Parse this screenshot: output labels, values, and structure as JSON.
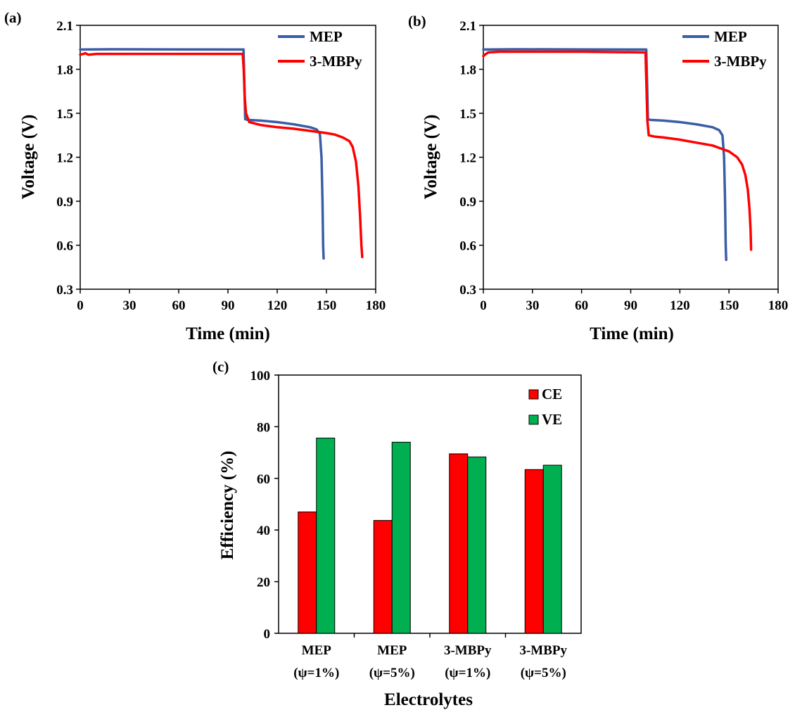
{
  "chart_data": [
    {
      "panel_label": "(a)",
      "type": "line",
      "xlabel": "Time (min)",
      "ylabel": "Voltage (V)",
      "xlim": [
        0,
        180
      ],
      "ylim": [
        0.3,
        2.1
      ],
      "xticks": [
        "0",
        "30",
        "60",
        "90",
        "120",
        "150",
        "180"
      ],
      "yticks": [
        "0.3",
        "0.6",
        "0.9",
        "1.2",
        "1.5",
        "1.8",
        "2.1"
      ],
      "grid": false,
      "legend_position": "top-right",
      "series": [
        {
          "name": "MEP",
          "color": "#3a5ea5",
          "points": [
            [
              0,
              1.935
            ],
            [
              20,
              1.937
            ],
            [
              60,
              1.936
            ],
            [
              99.5,
              1.935
            ],
            [
              100,
              1.7
            ],
            [
              100.5,
              1.46
            ],
            [
              102,
              1.455
            ],
            [
              110,
              1.45
            ],
            [
              120,
              1.44
            ],
            [
              130,
              1.425
            ],
            [
              140,
              1.405
            ],
            [
              144,
              1.39
            ],
            [
              146,
              1.36
            ],
            [
              147,
              1.2
            ],
            [
              147.6,
              0.9
            ],
            [
              148,
              0.6
            ],
            [
              148.3,
              0.51
            ]
          ]
        },
        {
          "name": "3-MBPy",
          "color": "#ff0000",
          "points": [
            [
              0,
              1.9
            ],
            [
              2,
              1.905
            ],
            [
              3,
              1.91
            ],
            [
              5,
              1.9
            ],
            [
              10,
              1.905
            ],
            [
              30,
              1.905
            ],
            [
              60,
              1.905
            ],
            [
              99,
              1.905
            ],
            [
              99.6,
              1.8
            ],
            [
              100.3,
              1.6
            ],
            [
              101,
              1.5
            ],
            [
              103,
              1.44
            ],
            [
              110,
              1.42
            ],
            [
              120,
              1.405
            ],
            [
              130,
              1.395
            ],
            [
              140,
              1.38
            ],
            [
              150,
              1.365
            ],
            [
              155,
              1.355
            ],
            [
              160,
              1.335
            ],
            [
              164,
              1.31
            ],
            [
              166,
              1.27
            ],
            [
              168,
              1.17
            ],
            [
              169.5,
              1.0
            ],
            [
              170.5,
              0.8
            ],
            [
              171.3,
              0.6
            ],
            [
              171.8,
              0.52
            ]
          ]
        }
      ]
    },
    {
      "panel_label": "(b)",
      "type": "line",
      "xlabel": "Time (min)",
      "ylabel": "Voltage (V)",
      "xlim": [
        0,
        180
      ],
      "ylim": [
        0.3,
        2.1
      ],
      "xticks": [
        "0",
        "30",
        "60",
        "90",
        "120",
        "150",
        "180"
      ],
      "yticks": [
        "0.3",
        "0.6",
        "0.9",
        "1.2",
        "1.5",
        "1.8",
        "2.1"
      ],
      "grid": false,
      "legend_position": "top-right",
      "series": [
        {
          "name": "MEP",
          "color": "#3a5ea5",
          "points": [
            [
              0,
              1.935
            ],
            [
              20,
              1.937
            ],
            [
              60,
              1.936
            ],
            [
              99.5,
              1.935
            ],
            [
              100,
              1.7
            ],
            [
              100.5,
              1.46
            ],
            [
              102,
              1.455
            ],
            [
              110,
              1.45
            ],
            [
              120,
              1.44
            ],
            [
              130,
              1.425
            ],
            [
              140,
              1.405
            ],
            [
              144,
              1.385
            ],
            [
              146,
              1.35
            ],
            [
              147,
              1.2
            ],
            [
              147.6,
              0.9
            ],
            [
              148,
              0.6
            ],
            [
              148.3,
              0.5
            ]
          ]
        },
        {
          "name": "3-MBPy",
          "color": "#ff0000",
          "points": [
            [
              0,
              1.89
            ],
            [
              1,
              1.9
            ],
            [
              3,
              1.915
            ],
            [
              10,
              1.92
            ],
            [
              30,
              1.92
            ],
            [
              60,
              1.92
            ],
            [
              99,
              1.915
            ],
            [
              99.6,
              1.7
            ],
            [
              100.2,
              1.45
            ],
            [
              101,
              1.35
            ],
            [
              105,
              1.34
            ],
            [
              110,
              1.335
            ],
            [
              120,
              1.32
            ],
            [
              130,
              1.3
            ],
            [
              140,
              1.28
            ],
            [
              145,
              1.26
            ],
            [
              150,
              1.24
            ],
            [
              155,
              1.2
            ],
            [
              158,
              1.15
            ],
            [
              160,
              1.08
            ],
            [
              161.5,
              0.98
            ],
            [
              162.5,
              0.85
            ],
            [
              163.2,
              0.7
            ],
            [
              163.5,
              0.57
            ]
          ]
        }
      ]
    },
    {
      "panel_label": "(c)",
      "type": "bar",
      "xlabel": "Electrolytes",
      "ylabel": "Efficiency (%)",
      "ylim": [
        0,
        100
      ],
      "yticks": [
        "0",
        "20",
        "40",
        "60",
        "80",
        "100"
      ],
      "grid": false,
      "legend_position": "top-right",
      "categories": [
        {
          "line1": "MEP",
          "line2": "(ψ=1%)"
        },
        {
          "line1": "MEP",
          "line2": "(ψ=5%)"
        },
        {
          "line1": "3-MBPy",
          "line2": "(ψ=1%)"
        },
        {
          "line1": "3-MBPy",
          "line2": "(ψ=5%)"
        }
      ],
      "series": [
        {
          "name": "CE",
          "color": "#ff0000",
          "values": [
            47,
            43.7,
            69.5,
            63.4
          ]
        },
        {
          "name": "VE",
          "color": "#00b050",
          "values": [
            75.6,
            74,
            68.3,
            65.1
          ]
        }
      ]
    }
  ]
}
